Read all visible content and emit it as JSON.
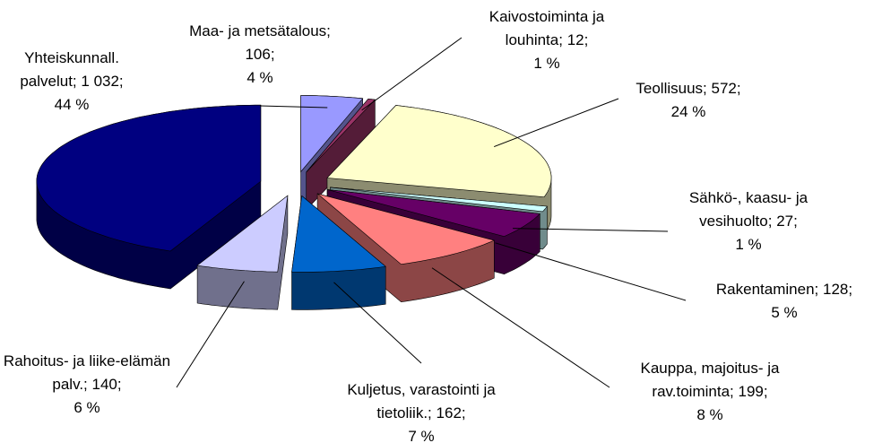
{
  "chart_data": {
    "type": "pie3d",
    "categories": [
      "Maa- ja metsätalous;",
      "Kaivostoiminta ja louhinta;",
      "Teollisuus;",
      "Sähkö-, kaasu- ja vesihuolto;",
      "Rakentaminen;",
      "Kauppa, majoitus- ja rav.toiminta;",
      "Kuljetus, varastointi ja tietoliik.;",
      "Rahoitus- ja liike-elämän palv.;",
      "Yhteiskunnall. palvelut;"
    ],
    "values": [
      106,
      12,
      572,
      27,
      128,
      199,
      162,
      140,
      1032
    ],
    "value_labels": [
      "106;",
      "12;",
      "572;",
      "27;",
      "128;",
      "199;",
      "162;",
      "140;",
      "1 032;"
    ],
    "percentages": [
      4,
      1,
      24,
      1,
      5,
      8,
      7,
      6,
      44
    ],
    "percentage_labels": [
      "4 %",
      "1 %",
      "24 %",
      "1 %",
      "5 %",
      "8 %",
      "7 %",
      "6 %",
      "44 %"
    ],
    "colors": [
      "#9999ff",
      "#993366",
      "#ffffcc",
      "#ccffff",
      "#660066",
      "#ff8080",
      "#0066cc",
      "#ccccff",
      "#000080"
    ]
  }
}
